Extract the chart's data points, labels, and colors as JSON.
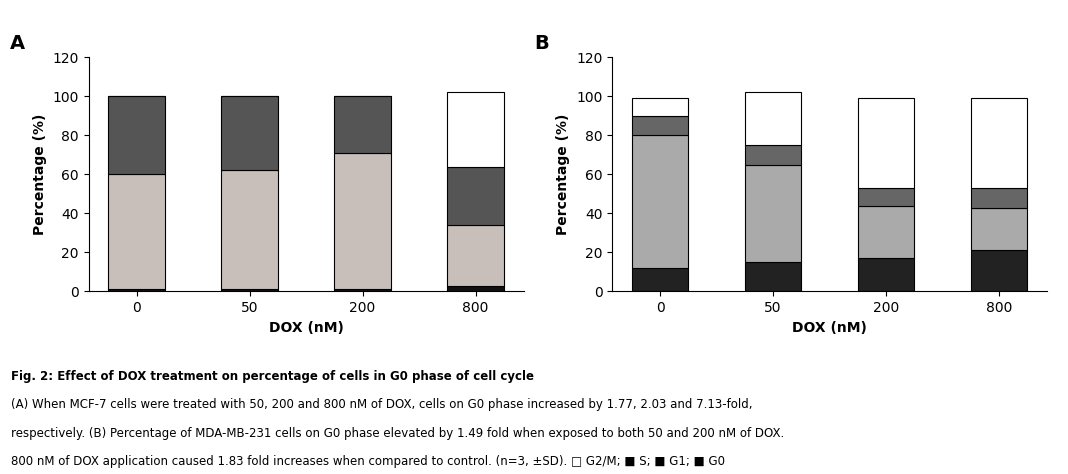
{
  "panel_A": {
    "categories": [
      "0",
      "50",
      "200",
      "800"
    ],
    "G2M": [
      0,
      0,
      0,
      38
    ],
    "S": [
      40,
      38,
      29,
      30
    ],
    "G1": [
      59,
      61,
      70,
      31
    ],
    "G0": [
      1,
      1,
      1,
      3
    ],
    "label": "A"
  },
  "panel_B": {
    "categories": [
      "0",
      "50",
      "200",
      "800"
    ],
    "G2M": [
      9,
      27,
      46,
      46
    ],
    "S": [
      10,
      10,
      9,
      10
    ],
    "G1": [
      68,
      50,
      27,
      22
    ],
    "G0": [
      12,
      15,
      17,
      21
    ],
    "label": "B"
  },
  "colors": {
    "G2M": "#ffffff",
    "S": "#888888",
    "G1": "#c8bfbb",
    "G0": "#333333"
  },
  "colors_A": {
    "G2M": "#ffffff",
    "S": "#555555",
    "G1": "#c8bfbb",
    "G0": "#111111"
  },
  "colors_B": {
    "G2M": "#ffffff",
    "S": "#666666",
    "G1": "#aaaaaa",
    "G0": "#222222"
  },
  "ylabel": "Percentage (%)",
  "xlabel": "DOX (nM)",
  "ylim": [
    0,
    120
  ],
  "yticks": [
    0,
    20,
    40,
    60,
    80,
    100,
    120
  ],
  "bar_width": 0.5,
  "edgecolor": "#000000",
  "caption_line1": "Fig. 2: Effect of DOX treatment on percentage of cells in G0 phase of cell cycle",
  "caption_line2": "(A) When MCF-7 cells were treated with 50, 200 and 800 nM of DOX, cells on G0 phase increased by 1.77, 2.03 and 7.13-fold,",
  "caption_line3": "respectively. (B) Percentage of MDA-MB-231 cells on G0 phase elevated by 1.49 fold when exposed to both 50 and 200 nM of DOX.",
  "caption_line4": "800 nM of DOX application caused 1.83 fold increases when compared to control. (n=3, ±SD). □ G2/M; ■ S; ■ G1; ■ G0"
}
